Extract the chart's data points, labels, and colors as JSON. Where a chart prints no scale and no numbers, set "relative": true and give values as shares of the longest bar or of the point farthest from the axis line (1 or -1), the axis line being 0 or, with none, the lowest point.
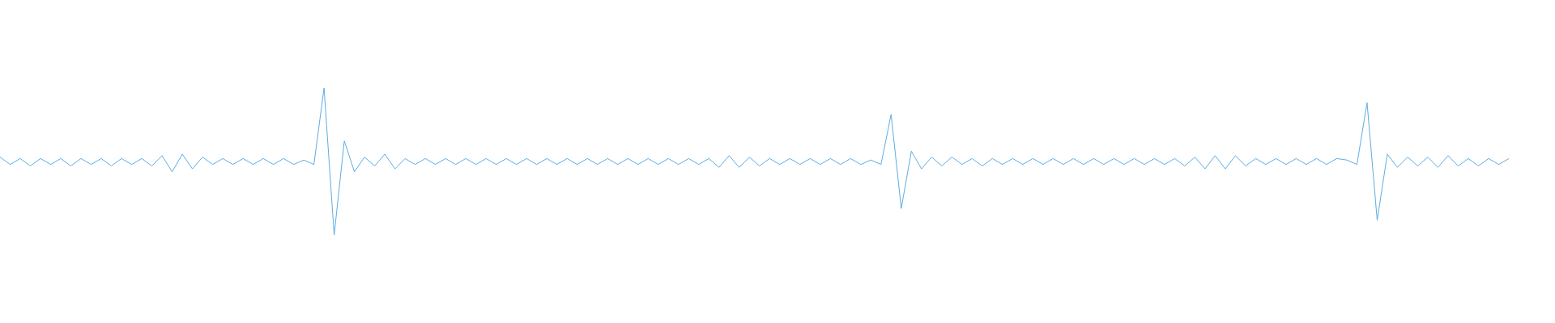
{
  "chart_data": {
    "type": "line",
    "relative": true,
    "categories": [
      null,
      null,
      null,
      null,
      null,
      null,
      null,
      null,
      null,
      null,
      null,
      null,
      null,
      null,
      null,
      null,
      null,
      null,
      null,
      null,
      null,
      null,
      null,
      null,
      null,
      null,
      null,
      null,
      null,
      null,
      null,
      null,
      null,
      null,
      null,
      null,
      null,
      null,
      null,
      null,
      null,
      null,
      null,
      null,
      null,
      null,
      null,
      null,
      null,
      null,
      null,
      null,
      null,
      null,
      null,
      null,
      null,
      null,
      null,
      null,
      null,
      null,
      null,
      null,
      null,
      null,
      null,
      null,
      null,
      null,
      null,
      null,
      null,
      null,
      null,
      null,
      null,
      null,
      null,
      null,
      null,
      null,
      null,
      null,
      null,
      null,
      null,
      null,
      null,
      null,
      null,
      null,
      null,
      null,
      null,
      null,
      null,
      null,
      null,
      null,
      null,
      null,
      null,
      null,
      null,
      null,
      null,
      null,
      null,
      null,
      null,
      null,
      null,
      null,
      null,
      null,
      null,
      null,
      null,
      null,
      null,
      null,
      null,
      null,
      null,
      null,
      null,
      null,
      null,
      null,
      null,
      null,
      null,
      null,
      null,
      null,
      null,
      null,
      null,
      null,
      null,
      null,
      null,
      null,
      null,
      null,
      null,
      null,
      null,
      null
    ],
    "series": [
      {
        "color": "#5dade2",
        "values": [
          0.53,
          0.48,
          0.52,
          0.47,
          0.52,
          0.48,
          0.52,
          0.47,
          0.52,
          0.48,
          0.52,
          0.47,
          0.52,
          0.48,
          0.52,
          0.47,
          0.54,
          0.43,
          0.55,
          0.45,
          0.53,
          0.48,
          0.52,
          0.48,
          0.52,
          0.48,
          0.52,
          0.48,
          0.52,
          0.48,
          0.51,
          0.48,
          1,
          0,
          0.64,
          0.43,
          0.53,
          0.47,
          0.55,
          0.45,
          0.52,
          0.48,
          0.52,
          0.48,
          0.52,
          0.48,
          0.52,
          0.48,
          0.52,
          0.48,
          0.52,
          0.48,
          0.52,
          0.48,
          0.52,
          0.48,
          0.52,
          0.48,
          0.52,
          0.48,
          0.52,
          0.48,
          0.52,
          0.48,
          0.52,
          0.48,
          0.52,
          0.48,
          0.52,
          0.48,
          0.52,
          0.46,
          0.54,
          0.46,
          0.53,
          0.47,
          0.52,
          0.48,
          0.52,
          0.48,
          0.52,
          0.48,
          0.52,
          0.48,
          0.52,
          0.48,
          0.51,
          0.48,
          0.82,
          0.18,
          0.57,
          0.45,
          0.53,
          0.47,
          0.53,
          0.48,
          0.52,
          0.47,
          0.52,
          0.48,
          0.52,
          0.48,
          0.52,
          0.48,
          0.52,
          0.48,
          0.52,
          0.48,
          0.52,
          0.48,
          0.52,
          0.48,
          0.52,
          0.48,
          0.52,
          0.48,
          0.52,
          0.47,
          0.53,
          0.45,
          0.54,
          0.45,
          0.54,
          0.47,
          0.52,
          0.48,
          0.52,
          0.48,
          0.52,
          0.48,
          0.52,
          0.48,
          0.52,
          0.51,
          0.48,
          0.9,
          0.1,
          0.55,
          0.46,
          0.53,
          0.47,
          0.53,
          0.46,
          0.54,
          0.47,
          0.52,
          0.47,
          0.52,
          0.48,
          0.52
        ]
      }
    ]
  }
}
